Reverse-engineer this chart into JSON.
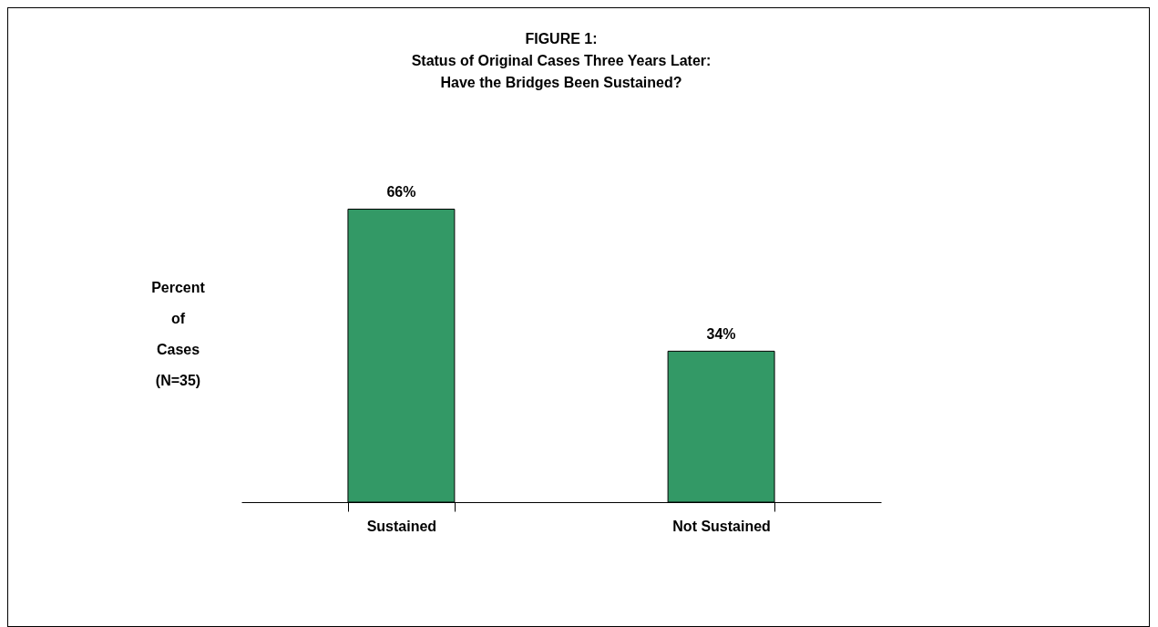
{
  "chart_data": {
    "type": "bar",
    "title": "FIGURE 1:\nStatus of Original Cases Three Years Later:\nHave the Bridges Been Sustained?",
    "ylabel": "Percent\nof\nCases\n(N=35)",
    "categories": [
      "Sustained",
      "Not Sustained"
    ],
    "values": [
      66,
      34
    ],
    "value_labels": [
      "66%",
      "34%"
    ],
    "color": "#339966",
    "grid": false
  }
}
